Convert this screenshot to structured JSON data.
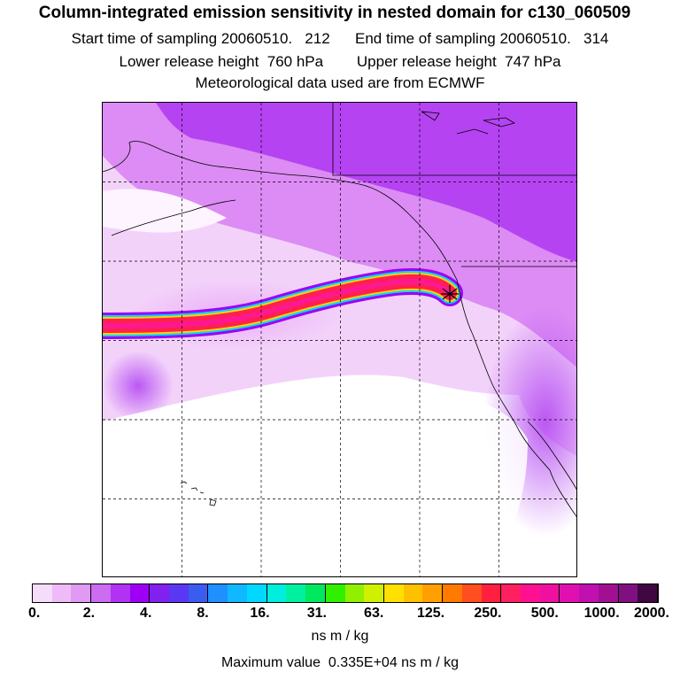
{
  "header": {
    "title": "Column-integrated emission sensitivity in nested domain for c130_060509",
    "line2": "Start time of sampling 20060510.   212      End time of sampling 20060510.   314",
    "line3": "Lower release height  760 hPa        Upper release height  747 hPa",
    "line4": "Meteorological data used are from ECMWF"
  },
  "colorbar": {
    "tick_labels": [
      "0.",
      "2.",
      "4.",
      "8.",
      "16.",
      "31.",
      "63.",
      "125.",
      "250.",
      "500.",
      "1000.",
      "2000."
    ],
    "units": "ns m / kg",
    "colors": [
      "#f6dcfb",
      "#eebaf8",
      "#e09af3",
      "#cc6cf0",
      "#b132f2",
      "#9d00f5",
      "#8220f0",
      "#5a38f2",
      "#3c5cf0",
      "#1e90ff",
      "#10b8ff",
      "#00d8ff",
      "#00eedd",
      "#00f0a0",
      "#00e860",
      "#30f000",
      "#90f000",
      "#d0f000",
      "#ffe000",
      "#ffc000",
      "#ffa000",
      "#ff7a00",
      "#ff4e20",
      "#ff2040",
      "#ff2060",
      "#ff1090",
      "#f010a0",
      "#e010b0",
      "#c010b0",
      "#a01090",
      "#801080",
      "#400840"
    ]
  },
  "max_value": "Maximum value  0.335E+04 ns m / kg"
}
